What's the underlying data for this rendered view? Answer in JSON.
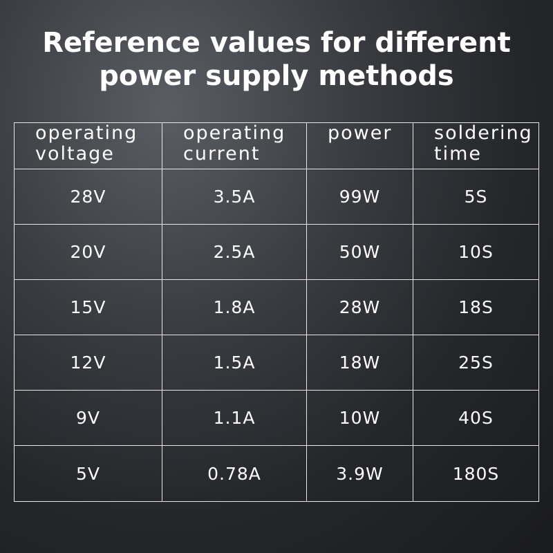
{
  "title": [
    "Reference values for different",
    "power supply methods"
  ],
  "table": {
    "header": [
      [
        "operating",
        "voltage"
      ],
      [
        "operating",
        "current"
      ],
      [
        "power"
      ],
      [
        "soldering",
        "time"
      ]
    ],
    "rows": [
      [
        "28V",
        "3.5A",
        "99W",
        "5S"
      ],
      [
        "20V",
        "2.5A",
        "50W",
        "10S"
      ],
      [
        "15V",
        "1.8A",
        "28W",
        "18S"
      ],
      [
        "12V",
        "1.5A",
        "18W",
        "25S"
      ],
      [
        "9V",
        "1.1A",
        "10W",
        "40S"
      ],
      [
        "5V",
        "0.78A",
        "3.9W",
        "180S"
      ]
    ]
  }
}
